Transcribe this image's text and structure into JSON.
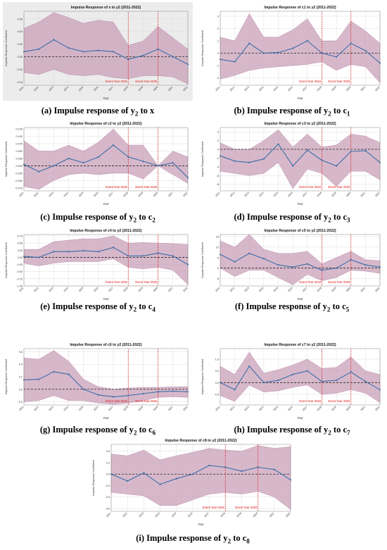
{
  "figure": {
    "colors": {
      "band": "#c9a0b8",
      "band_edge": "#b07aa0",
      "line": "#3c6ea8",
      "zero": "#222222",
      "event": "#e01010",
      "grid": "#dddddd",
      "frame": "#888888"
    }
  },
  "chart_data": [
    {
      "id": "a",
      "type": "line",
      "title": "Impulse Response of x to y2 (2011-2022)",
      "xlabel": "Year",
      "ylabel": "Impulse Response Coefficient",
      "x": [
        2011,
        2012,
        2013,
        2014,
        2015,
        2016,
        2017,
        2018,
        2019,
        2020,
        2021,
        2022
      ],
      "values": [
        0.008,
        0.012,
        0.027,
        0.014,
        0.008,
        0.01,
        0.008,
        -0.004,
        0.002,
        0.012,
        0.0,
        -0.012
      ],
      "upper": [
        0.045,
        0.055,
        0.07,
        0.062,
        0.053,
        0.058,
        0.055,
        0.018,
        0.025,
        0.048,
        0.03,
        0.012
      ],
      "lower": [
        -0.025,
        -0.028,
        -0.02,
        -0.028,
        -0.03,
        -0.028,
        -0.033,
        -0.035,
        -0.03,
        -0.03,
        -0.032,
        -0.043
      ],
      "ylim": [
        -0.045,
        0.072
      ],
      "yticks": [
        -0.04,
        -0.02,
        0.0,
        0.02,
        0.04,
        0.06
      ],
      "ytick_labels": [
        "-0.04",
        "-0.02",
        "0.00",
        "0.02",
        "0.04",
        "0.06"
      ],
      "events": [
        {
          "x": 2018,
          "label": "Event Year 2018"
        },
        {
          "x": 2020,
          "label": "Event Year 2020"
        }
      ],
      "caption_letter": "(a)",
      "caption_text": "Impulse response of y",
      "caption_sub": "2",
      "caption_tail": " to x",
      "shaded": true
    },
    {
      "id": "b",
      "type": "line",
      "title": "Impulse Response of c1 to y2 (2011-2022)",
      "xlabel": "Year",
      "ylabel": "Impulse Response Coefficient",
      "x": [
        2011,
        2012,
        2013,
        2014,
        2015,
        2016,
        2017,
        2018,
        2019,
        2020,
        2021,
        2022
      ],
      "values": [
        -0.5,
        -0.7,
        0.8,
        0.0,
        0.05,
        0.4,
        1.0,
        0.0,
        -0.3,
        0.8,
        0.2,
        -0.8
      ],
      "upper": [
        1.3,
        1.0,
        3.2,
        1.3,
        1.3,
        1.9,
        2.8,
        1.0,
        1.0,
        2.6,
        1.8,
        0.8
      ],
      "lower": [
        -2.1,
        -1.8,
        -1.4,
        -1.2,
        -1.1,
        -1.0,
        -0.9,
        -0.7,
        -1.4,
        -0.9,
        -1.1,
        -2.4
      ],
      "ylim": [
        -2.6,
        3.4
      ],
      "yticks": [
        -2,
        -1,
        0,
        1,
        2,
        3
      ],
      "ytick_labels": [
        "-2",
        "-1",
        "0",
        "1",
        "2",
        "3"
      ],
      "events": [
        {
          "x": 2018,
          "label": "Event Year 2018"
        },
        {
          "x": 2020,
          "label": "Event Year 2020"
        }
      ],
      "caption_letter": "(b)",
      "caption_text": "Impulse response of y",
      "caption_sub": "2",
      "caption_tail": " to c",
      "caption_tail_sub": "1"
    },
    {
      "id": "c",
      "type": "line",
      "title": "Impulse Response of c2 to y2 (2011-2022)",
      "xlabel": "Year",
      "ylabel": "Impulse Response Coefficient",
      "x": [
        2011,
        2012,
        2013,
        2014,
        2015,
        2016,
        2017,
        2018,
        2019,
        2020,
        2021,
        2022
      ],
      "values": [
        0.005,
        -0.02,
        0.0,
        0.025,
        0.01,
        0.03,
        0.07,
        0.03,
        0.015,
        0.0,
        0.01,
        -0.04
      ],
      "upper": [
        0.085,
        0.05,
        0.05,
        0.07,
        0.05,
        0.08,
        0.125,
        0.07,
        0.07,
        0.0,
        0.05,
        0.03
      ],
      "lower": [
        -0.07,
        -0.08,
        -0.05,
        -0.03,
        -0.025,
        -0.03,
        -0.025,
        -0.025,
        -0.045,
        0.0,
        -0.03,
        -0.06
      ],
      "ylim": [
        -0.085,
        0.13
      ],
      "yticks": [
        -0.075,
        -0.05,
        -0.025,
        0.0,
        0.025,
        0.05,
        0.075,
        0.1,
        0.125
      ],
      "ytick_labels": [
        "-0.075",
        "-0.050",
        "-0.025",
        "0.000",
        "0.025",
        "0.050",
        "0.075",
        "0.100",
        "0.125"
      ],
      "events": [
        {
          "x": 2018,
          "label": "Event Year 2018"
        },
        {
          "x": 2020,
          "label": "Event Year 2020"
        }
      ],
      "caption_letter": "(c)",
      "caption_text": "Impulse response of y",
      "caption_sub": "2",
      "caption_tail": " to c",
      "caption_tail_sub": "2"
    },
    {
      "id": "d",
      "type": "line",
      "title": "Impulse Response of c3 to y2 (2011-2022)",
      "xlabel": "Year",
      "ylabel": "Impulse Response Coefficient",
      "x": [
        2011,
        2012,
        2013,
        2014,
        2015,
        2016,
        2017,
        2018,
        2019,
        2020,
        2021,
        2022
      ],
      "values": [
        -1.5,
        -2.7,
        -3.0,
        -2.2,
        1.2,
        -3.8,
        -0.2,
        -2.5,
        -3.8,
        -0.5,
        -0.3,
        -3.0
      ],
      "upper": [
        1.5,
        0.0,
        0.0,
        2.0,
        4.5,
        0.5,
        3.5,
        0.5,
        1.0,
        3.5,
        3.0,
        1.5
      ],
      "lower": [
        -5.0,
        -5.5,
        -6.0,
        -5.5,
        -3.0,
        -9.0,
        -4.5,
        -5.5,
        -8.5,
        -5.0,
        -5.0,
        -7.0
      ],
      "ylim": [
        -9.5,
        5.0
      ],
      "yticks": [
        -8,
        -6,
        -4,
        -2,
        0,
        2,
        4
      ],
      "ytick_labels": [
        "-8",
        "-6",
        "-4",
        "-2",
        "0",
        "2",
        "4"
      ],
      "events": [
        {
          "x": 2018,
          "label": "Event Year 2018"
        },
        {
          "x": 2020,
          "label": "Event Year 2020"
        }
      ],
      "caption_letter": "(d)",
      "caption_text": "Impulse response of y",
      "caption_sub": "2",
      "caption_tail": " to c",
      "caption_tail_sub": "3"
    },
    {
      "id": "e",
      "type": "line",
      "title": "Impulse Response of c4 to y2 (2011-2022)",
      "xlabel": "Year",
      "ylabel": "Impulse Response Coefficient",
      "x": [
        2011,
        2012,
        2013,
        2014,
        2015,
        2016,
        2017,
        2018,
        2019,
        2020,
        2021,
        2022
      ],
      "values": [
        0.03,
        0.0,
        0.2,
        0.2,
        0.23,
        0.2,
        0.35,
        0.05,
        0.05,
        0.15,
        0.05,
        -0.25
      ],
      "upper": [
        0.28,
        0.28,
        0.55,
        0.6,
        0.65,
        0.65,
        0.75,
        0.5,
        0.52,
        0.5,
        0.48,
        0.45
      ],
      "lower": [
        -0.2,
        -0.3,
        -0.2,
        -0.15,
        -0.15,
        -0.15,
        -0.05,
        -0.35,
        -0.4,
        -0.35,
        -0.45,
        -0.95
      ],
      "ylim": [
        -1.0,
        0.8
      ],
      "yticks": [
        -1.0,
        -0.75,
        -0.5,
        -0.25,
        0.0,
        0.25,
        0.5,
        0.75
      ],
      "ytick_labels": [
        "-1.00",
        "-0.75",
        "-0.50",
        "-0.25",
        "0.00",
        "0.25",
        "0.50",
        "0.75"
      ],
      "events": [
        {
          "x": 2018,
          "label": "Event Year 2018"
        },
        {
          "x": 2020,
          "label": "Event Year 2020"
        }
      ],
      "caption_letter": "(e)",
      "caption_text": "Impulse response of y",
      "caption_sub": "2",
      "caption_tail": " to c",
      "caption_tail_sub": "4"
    },
    {
      "id": "f",
      "type": "line",
      "title": "Impulse Response of c5 to y2 (2011-2022)",
      "xlabel": "Year",
      "ylabel": "Impulse Response Coefficient",
      "x": [
        2011,
        2012,
        2013,
        2014,
        2015,
        2016,
        2017,
        2018,
        2019,
        2020,
        2021,
        2022
      ],
      "values": [
        6.5,
        3.0,
        7.0,
        4.5,
        1.5,
        0.5,
        2.0,
        -1.0,
        0.0,
        4.0,
        1.5,
        0.5
      ],
      "upper": [
        13.0,
        10.0,
        16.0,
        9.0,
        7.0,
        7.0,
        8.0,
        2.0,
        5.0,
        8.0,
        4.0,
        3.5
      ],
      "lower": [
        0.0,
        -4.0,
        -1.0,
        -1.0,
        -4.5,
        -8.0,
        -3.0,
        -6.0,
        -4.5,
        -1.0,
        -1.5,
        -2.5
      ],
      "ylim": [
        -8.5,
        16.0
      ],
      "yticks": [
        -5,
        0,
        5,
        10,
        15
      ],
      "ytick_labels": [
        "-5",
        "0",
        "5",
        "10",
        "15"
      ],
      "events": [
        {
          "x": 2018,
          "label": "Event Year 2018"
        },
        {
          "x": 2020,
          "label": "Event Year 2020"
        }
      ],
      "caption_letter": "(f)",
      "caption_text": "Impulse response of y",
      "caption_sub": "2",
      "caption_tail": " to c",
      "caption_tail_sub": "5"
    },
    {
      "id": "g",
      "type": "line",
      "title": "Impulse Response of c6 to y2 (2011-2022)",
      "xlabel": "Year",
      "ylabel": "Impulse Response Coefficient",
      "x": [
        2011,
        2012,
        2013,
        2014,
        2015,
        2016,
        2017,
        2018,
        2019,
        2020,
        2021,
        2022
      ],
      "values": [
        0.15,
        0.16,
        0.28,
        0.24,
        0.0,
        -0.09,
        -0.12,
        -0.1,
        -0.07,
        -0.04,
        -0.03,
        -0.04
      ],
      "upper": [
        0.5,
        0.48,
        0.62,
        0.45,
        0.16,
        0.04,
        0.0,
        0.02,
        0.03,
        0.03,
        0.04,
        0.04
      ],
      "lower": [
        -0.2,
        -0.18,
        -0.1,
        -0.18,
        -0.18,
        -0.22,
        -0.24,
        -0.22,
        -0.18,
        -0.13,
        -0.12,
        -0.13
      ],
      "ylim": [
        -0.25,
        0.65
      ],
      "yticks": [
        -0.2,
        0.0,
        0.2,
        0.4,
        0.6
      ],
      "ytick_labels": [
        "-0.2",
        "0.0",
        "0.2",
        "0.4",
        "0.6"
      ],
      "events": [
        {
          "x": 2018,
          "label": "Event Year 2018"
        },
        {
          "x": 2020,
          "label": "Event Year 2020"
        }
      ],
      "caption_letter": "(g)",
      "caption_text": "Impulse response of y",
      "caption_sub": "2",
      "caption_tail": " to c",
      "caption_tail_sub": "6"
    },
    {
      "id": "h",
      "type": "line",
      "title": "Impulse Response of c7 to y2 (2011-2022)",
      "xlabel": "Year",
      "ylabel": "Impulse Response Coefficient",
      "x": [
        2011,
        2012,
        2013,
        2014,
        2015,
        2016,
        2017,
        2018,
        2019,
        2020,
        2021,
        2022
      ],
      "values": [
        0.0,
        -0.3,
        0.7,
        0.0,
        0.1,
        0.35,
        0.5,
        0.05,
        0.1,
        0.45,
        0.05,
        -0.3
      ],
      "upper": [
        0.7,
        0.35,
        1.3,
        0.4,
        0.55,
        0.75,
        1.0,
        0.6,
        0.65,
        1.1,
        0.5,
        0.35
      ],
      "lower": [
        -0.55,
        -0.8,
        -0.1,
        -0.4,
        -0.35,
        -0.2,
        -0.1,
        -0.5,
        -0.45,
        -0.3,
        -0.45,
        -0.85
      ],
      "ylim": [
        -0.95,
        1.45
      ],
      "yticks": [
        -0.5,
        0.0,
        0.5,
        1.0
      ],
      "ytick_labels": [
        "-0.5",
        "0.0",
        "0.5",
        "1.0"
      ],
      "events": [
        {
          "x": 2018,
          "label": "Event Year 2018"
        },
        {
          "x": 2020,
          "label": "Event Year 2020"
        }
      ],
      "caption_letter": "(h)",
      "caption_text": "Impulse response of y",
      "caption_sub": "2",
      "caption_tail": " to c",
      "caption_tail_sub": "7"
    },
    {
      "id": "i",
      "type": "line",
      "title": "Impulse Response of c8 to y2 (2011-2022)",
      "xlabel": "Year",
      "ylabel": "Impulse Response Coefficient",
      "x": [
        2011,
        2012,
        2013,
        2014,
        2015,
        2016,
        2017,
        2018,
        2019,
        2020,
        2021,
        2022
      ],
      "values": [
        0.0,
        -0.12,
        0.02,
        -0.18,
        -0.08,
        0.0,
        0.15,
        0.12,
        0.05,
        0.12,
        0.08,
        -0.1
      ],
      "upper": [
        0.35,
        0.32,
        0.42,
        0.25,
        0.32,
        0.38,
        0.45,
        0.42,
        0.4,
        0.5,
        0.45,
        0.48
      ],
      "lower": [
        -0.32,
        -0.35,
        -0.38,
        -0.55,
        -0.55,
        -0.45,
        -0.35,
        -0.32,
        -0.35,
        -0.3,
        -0.4,
        -0.62
      ],
      "ylim": [
        -0.65,
        0.52
      ],
      "yticks": [
        -0.6,
        -0.4,
        -0.2,
        0.0,
        0.2,
        0.4
      ],
      "ytick_labels": [
        "-0.6",
        "-0.4",
        "-0.2",
        "0.0",
        "0.2",
        "0.4"
      ],
      "events": [
        {
          "x": 2018,
          "label": "Event Year 2018"
        },
        {
          "x": 2020,
          "label": "Event Year 2020"
        }
      ],
      "caption_letter": "(i)",
      "caption_text": "Impulse response of y",
      "caption_sub": "2",
      "caption_tail": " to c",
      "caption_tail_sub": "8"
    }
  ]
}
